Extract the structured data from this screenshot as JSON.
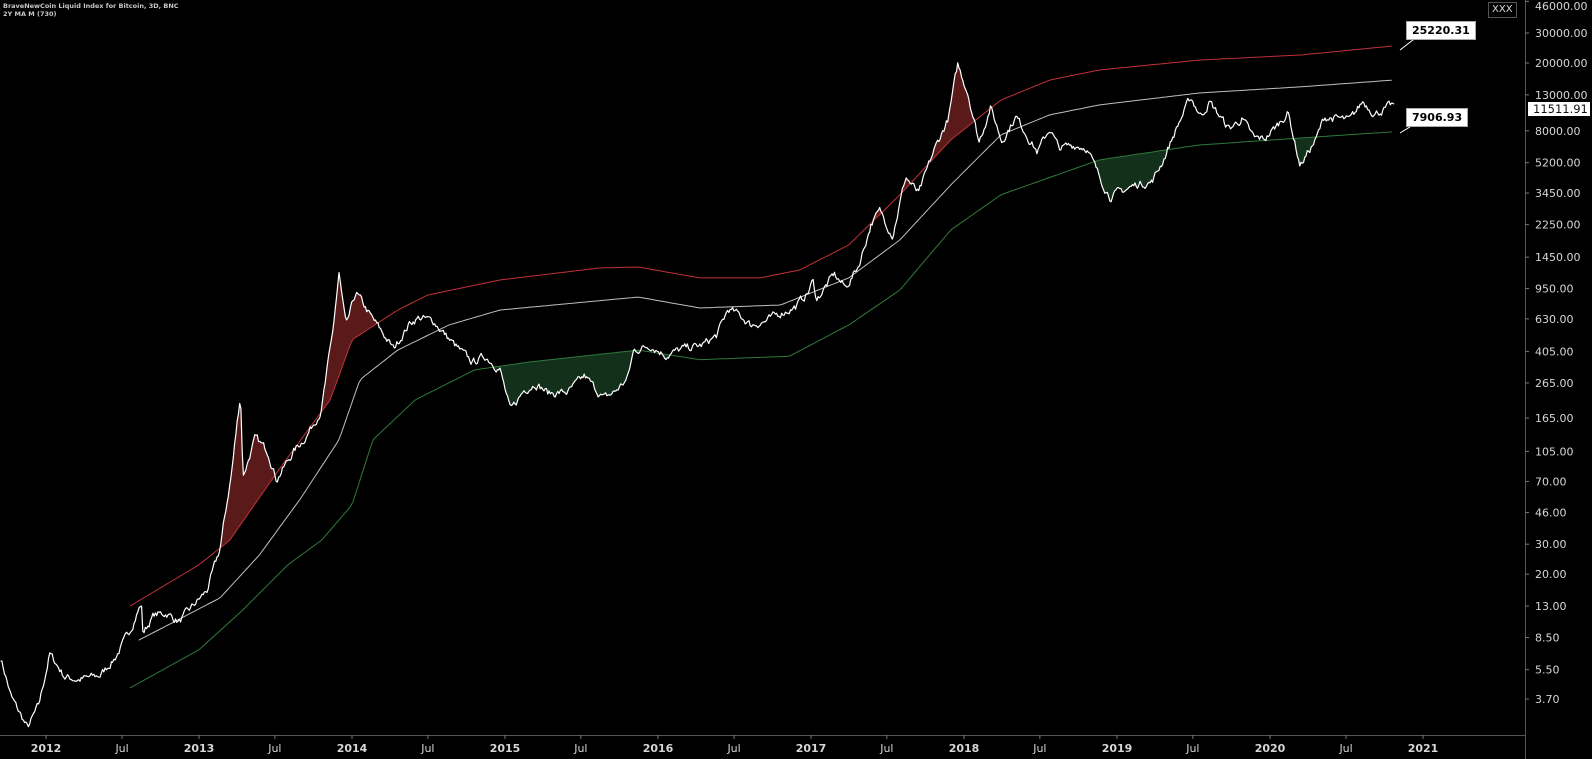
{
  "header": {
    "title": "BraveNewCoin Liquid Index for Bitcoin, 3D, BNC",
    "indicator": "2Y MA M (730)"
  },
  "top_right_button": "XXX",
  "colors": {
    "background": "#000000",
    "price": "#ffffff",
    "upper_band": "#c0323a",
    "middle_band": "#bfbfbf",
    "lower_band": "#2f7a3a",
    "upper_fill": "#5a1a1a",
    "lower_fill": "#13301a"
  },
  "chart_data": {
    "type": "line",
    "yscale": "log",
    "grid": false,
    "ylim": [
      3.2,
      46000
    ],
    "xlim": [
      "2011-09-15",
      "2021-06-30"
    ],
    "y_ticks": [
      "46000.00",
      "30000.00",
      "20000.00",
      "13000.00",
      "8000.00",
      "5200.00",
      "3450.00",
      "2250.00",
      "1450.00",
      "950.00",
      "630.00",
      "405.00",
      "265.00",
      "165.00",
      "105.00",
      "70.00",
      "46.00",
      "30.00",
      "20.00",
      "13.00",
      "8.50",
      "5.50",
      "3.70"
    ],
    "x_ticks": [
      {
        "label": "2012",
        "date": "2012-01-01"
      },
      {
        "label": "Jul",
        "date": "2012-07-01"
      },
      {
        "label": "2013",
        "date": "2013-01-01"
      },
      {
        "label": "Jul",
        "date": "2013-07-01"
      },
      {
        "label": "2014",
        "date": "2014-01-01"
      },
      {
        "label": "Jul",
        "date": "2014-07-01"
      },
      {
        "label": "2015",
        "date": "2015-01-01"
      },
      {
        "label": "Jul",
        "date": "2015-07-01"
      },
      {
        "label": "2016",
        "date": "2016-01-01"
      },
      {
        "label": "Jul",
        "date": "2016-07-01"
      },
      {
        "label": "2017",
        "date": "2017-01-01"
      },
      {
        "label": "Jul",
        "date": "2017-07-01"
      },
      {
        "label": "2018",
        "date": "2018-01-01"
      },
      {
        "label": "Jul",
        "date": "2018-07-01"
      },
      {
        "label": "2019",
        "date": "2019-01-01"
      },
      {
        "label": "Jul",
        "date": "2019-07-01"
      },
      {
        "label": "2020",
        "date": "2020-01-01"
      },
      {
        "label": "Jul",
        "date": "2020-07-01"
      },
      {
        "label": "2021",
        "date": "2021-01-01"
      }
    ],
    "last_price_label": "11511.91",
    "upper_band_label": "25220.31",
    "lower_band_label": "7906.93",
    "series": [
      {
        "role": "price",
        "color": "#ffffff",
        "points": [
          [
            "2011-09-15",
            6.5
          ],
          [
            "2011-10-10",
            3.8
          ],
          [
            "2011-11-18",
            2.5
          ],
          [
            "2011-12-15",
            3.4
          ],
          [
            "2012-01-10",
            6.8
          ],
          [
            "2012-02-15",
            5.0
          ],
          [
            "2012-03-20",
            4.8
          ],
          [
            "2012-05-10",
            5.1
          ],
          [
            "2012-06-15",
            6.5
          ],
          [
            "2012-07-15",
            8.8
          ],
          [
            "2012-08-16",
            13.5
          ],
          [
            "2012-08-20",
            9.0
          ],
          [
            "2012-09-15",
            11.5
          ],
          [
            "2012-10-15",
            11.8
          ],
          [
            "2012-11-15",
            10.5
          ],
          [
            "2012-12-20",
            13.2
          ],
          [
            "2013-01-20",
            16
          ],
          [
            "2013-02-20",
            28
          ],
          [
            "2013-03-20",
            80
          ],
          [
            "2013-04-10",
            230
          ],
          [
            "2013-04-16",
            75
          ],
          [
            "2013-05-15",
            125
          ],
          [
            "2013-06-15",
            105
          ],
          [
            "2013-07-05",
            72
          ],
          [
            "2013-08-15",
            105
          ],
          [
            "2013-09-15",
            130
          ],
          [
            "2013-10-20",
            185
          ],
          [
            "2013-11-15",
            500
          ],
          [
            "2013-12-01",
            1150
          ],
          [
            "2013-12-18",
            560
          ],
          [
            "2014-01-10",
            900
          ],
          [
            "2014-02-15",
            650
          ],
          [
            "2014-03-20",
            500
          ],
          [
            "2014-04-10",
            420
          ],
          [
            "2014-05-20",
            600
          ],
          [
            "2014-06-10",
            640
          ],
          [
            "2014-07-15",
            610
          ],
          [
            "2014-08-20",
            480
          ],
          [
            "2014-09-20",
            400
          ],
          [
            "2014-10-15",
            350
          ],
          [
            "2014-11-15",
            380
          ],
          [
            "2014-12-20",
            320
          ],
          [
            "2015-01-14",
            180
          ],
          [
            "2015-02-15",
            240
          ],
          [
            "2015-03-15",
            265
          ],
          [
            "2015-04-15",
            230
          ],
          [
            "2015-06-01",
            235
          ],
          [
            "2015-07-10",
            290
          ],
          [
            "2015-08-25",
            215
          ],
          [
            "2015-09-20",
            235
          ],
          [
            "2015-10-20",
            280
          ],
          [
            "2015-11-04",
            410
          ],
          [
            "2015-12-15",
            440
          ],
          [
            "2016-01-20",
            385
          ],
          [
            "2016-03-01",
            420
          ],
          [
            "2016-04-15",
            440
          ],
          [
            "2016-05-20",
            500
          ],
          [
            "2016-06-17",
            720
          ],
          [
            "2016-07-15",
            660
          ],
          [
            "2016-08-10",
            580
          ],
          [
            "2016-09-15",
            610
          ],
          [
            "2016-10-20",
            680
          ],
          [
            "2016-11-25",
            740
          ],
          [
            "2016-12-25",
            900
          ],
          [
            "2017-01-05",
            1050
          ],
          [
            "2017-01-15",
            820
          ],
          [
            "2017-02-25",
            1150
          ],
          [
            "2017-03-25",
            960
          ],
          [
            "2017-04-25",
            1300
          ],
          [
            "2017-05-25",
            2300
          ],
          [
            "2017-06-15",
            2700
          ],
          [
            "2017-07-15",
            1950
          ],
          [
            "2017-08-15",
            4300
          ],
          [
            "2017-09-15",
            3400
          ],
          [
            "2017-10-20",
            6000
          ],
          [
            "2017-11-25",
            9500
          ],
          [
            "2017-12-17",
            19500
          ],
          [
            "2018-01-10",
            13500
          ],
          [
            "2018-02-06",
            6900
          ],
          [
            "2018-03-05",
            11000
          ],
          [
            "2018-04-01",
            7000
          ],
          [
            "2018-05-05",
            9700
          ],
          [
            "2018-06-25",
            6000
          ],
          [
            "2018-07-25",
            8300
          ],
          [
            "2018-08-15",
            6300
          ],
          [
            "2018-09-20",
            6600
          ],
          [
            "2018-10-20",
            6400
          ],
          [
            "2018-11-20",
            4300
          ],
          [
            "2018-12-15",
            3300
          ],
          [
            "2019-01-20",
            3600
          ],
          [
            "2019-02-20",
            3900
          ],
          [
            "2019-03-25",
            4000
          ],
          [
            "2019-04-20",
            5300
          ],
          [
            "2019-05-25",
            8500
          ],
          [
            "2019-06-26",
            12500
          ],
          [
            "2019-07-20",
            9800
          ],
          [
            "2019-08-10",
            11800
          ],
          [
            "2019-09-25",
            8200
          ],
          [
            "2019-10-26",
            9400
          ],
          [
            "2019-11-25",
            7200
          ],
          [
            "2019-12-20",
            7200
          ],
          [
            "2020-01-20",
            8700
          ],
          [
            "2020-02-13",
            10300
          ],
          [
            "2020-03-13",
            5000
          ],
          [
            "2020-04-20",
            7100
          ],
          [
            "2020-05-10",
            9600
          ],
          [
            "2020-06-15",
            9400
          ],
          [
            "2020-07-10",
            9200
          ],
          [
            "2020-08-10",
            11900
          ],
          [
            "2020-09-08",
            10100
          ],
          [
            "2020-10-01",
            10700
          ],
          [
            "2020-10-25",
            11511.91
          ]
        ]
      },
      {
        "role": "upper_band",
        "color": "#c0323a",
        "points": [
          [
            "2012-07-20",
            13.0
          ],
          [
            "2013-01-01",
            22.7
          ],
          [
            "2013-03-15",
            31.6
          ],
          [
            "2013-07-10",
            81.7
          ],
          [
            "2013-11-10",
            211
          ],
          [
            "2014-01-01",
            475
          ],
          [
            "2014-04-20",
            710
          ],
          [
            "2014-07-01",
            870
          ],
          [
            "2014-12-20",
            1066
          ],
          [
            "2015-08-15",
            1254
          ],
          [
            "2015-11-15",
            1270
          ],
          [
            "2016-04-10",
            1096
          ],
          [
            "2016-09-01",
            1096
          ],
          [
            "2016-12-05",
            1220
          ],
          [
            "2017-04-01",
            1710
          ],
          [
            "2017-08-01",
            3370
          ],
          [
            "2017-11-30",
            7060
          ],
          [
            "2018-03-30",
            12130
          ],
          [
            "2018-07-25",
            15900
          ],
          [
            "2018-11-20",
            18200
          ],
          [
            "2019-07-15",
            20800
          ],
          [
            "2020-03-15",
            22300
          ],
          [
            "2020-10-25",
            25220.31
          ]
        ]
      },
      {
        "role": "middle_band",
        "color": "#bfbfbf",
        "points": [
          [
            "2012-08-10",
            8.2
          ],
          [
            "2013-02-20",
            14.5
          ],
          [
            "2013-05-25",
            25.9
          ],
          [
            "2013-08-30",
            55
          ],
          [
            "2013-12-01",
            123
          ],
          [
            "2014-01-20",
            277
          ],
          [
            "2014-04-20",
            413
          ],
          [
            "2014-08-20",
            580
          ],
          [
            "2014-12-20",
            710
          ],
          [
            "2015-11-15",
            846
          ],
          [
            "2016-04-10",
            730
          ],
          [
            "2016-10-20",
            760
          ],
          [
            "2017-04-01",
            1096
          ],
          [
            "2017-08-01",
            1830
          ],
          [
            "2017-11-30",
            3840
          ],
          [
            "2018-03-30",
            7570
          ],
          [
            "2018-07-25",
            9930
          ],
          [
            "2018-11-20",
            11350
          ],
          [
            "2019-07-15",
            13330
          ],
          [
            "2020-03-15",
            14500
          ],
          [
            "2020-10-25",
            15900
          ]
        ]
      },
      {
        "role": "lower_band",
        "color": "#2f7a3a",
        "points": [
          [
            "2012-07-20",
            4.3
          ],
          [
            "2013-01-01",
            7.2
          ],
          [
            "2013-04-15",
            12.3
          ],
          [
            "2013-08-01",
            22.7
          ],
          [
            "2013-10-20",
            31.6
          ],
          [
            "2014-01-01",
            51
          ],
          [
            "2014-02-20",
            123
          ],
          [
            "2014-06-01",
            211
          ],
          [
            "2014-10-20",
            316
          ],
          [
            "2015-03-01",
            352
          ],
          [
            "2015-11-15",
            413
          ],
          [
            "2016-04-10",
            363
          ],
          [
            "2016-11-10",
            380
          ],
          [
            "2017-04-01",
            580
          ],
          [
            "2017-08-01",
            930
          ],
          [
            "2017-11-30",
            2090
          ],
          [
            "2018-03-30",
            3370
          ],
          [
            "2018-11-20",
            5400
          ],
          [
            "2019-07-15",
            6600
          ],
          [
            "2020-03-15",
            7260
          ],
          [
            "2020-10-25",
            7906.93
          ]
        ]
      }
    ]
  }
}
